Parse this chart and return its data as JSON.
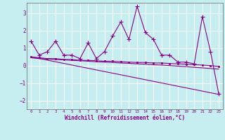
{
  "xlabel": "Windchill (Refroidissement éolien,°C)",
  "xlim": [
    -0.5,
    23.5
  ],
  "ylim": [
    -2.5,
    3.6
  ],
  "yticks": [
    -2,
    -1,
    0,
    1,
    2,
    3
  ],
  "xticks": [
    0,
    1,
    2,
    3,
    4,
    5,
    6,
    7,
    8,
    9,
    10,
    11,
    12,
    13,
    14,
    15,
    16,
    17,
    18,
    19,
    20,
    21,
    22,
    23
  ],
  "background_color": "#c6eef0",
  "grid_color": "#b0dde0",
  "line_color": "#880088",
  "series": {
    "line1_x": [
      0,
      1,
      2,
      3,
      4,
      5,
      6,
      7,
      8,
      9,
      10,
      11,
      12,
      13,
      14,
      15,
      16,
      17,
      18,
      19,
      20,
      21,
      22,
      23
    ],
    "line1_y": [
      1.4,
      0.6,
      0.8,
      1.4,
      0.6,
      0.6,
      0.4,
      1.3,
      0.4,
      0.8,
      1.7,
      2.5,
      1.5,
      3.4,
      1.9,
      1.5,
      0.6,
      0.6,
      0.2,
      0.2,
      0.1,
      2.8,
      0.8,
      -1.6
    ],
    "line2_x": [
      0,
      1,
      2,
      3,
      4,
      5,
      6,
      7,
      8,
      9,
      10,
      11,
      12,
      13,
      14,
      15,
      16,
      17,
      18,
      19,
      20,
      21,
      22,
      23
    ],
    "line2_y": [
      0.5,
      0.45,
      0.4,
      0.4,
      0.35,
      0.35,
      0.3,
      0.3,
      0.28,
      0.25,
      0.25,
      0.22,
      0.2,
      0.18,
      0.18,
      0.15,
      0.15,
      0.12,
      0.1,
      0.08,
      0.05,
      0.03,
      0.0,
      -0.05
    ],
    "line3_x": [
      0,
      1,
      2,
      3,
      4,
      5,
      6,
      7,
      8,
      9,
      10,
      11,
      12,
      13,
      14,
      15,
      16,
      17,
      18,
      19,
      20,
      21,
      22,
      23
    ],
    "line3_y": [
      0.45,
      0.4,
      0.38,
      0.35,
      0.33,
      0.3,
      0.28,
      0.25,
      0.22,
      0.2,
      0.18,
      0.15,
      0.13,
      0.1,
      0.08,
      0.05,
      0.03,
      0.0,
      -0.03,
      -0.06,
      -0.1,
      -0.13,
      -0.17,
      -0.2
    ],
    "line4_x": [
      0,
      23
    ],
    "line4_y": [
      0.5,
      -1.65
    ]
  }
}
